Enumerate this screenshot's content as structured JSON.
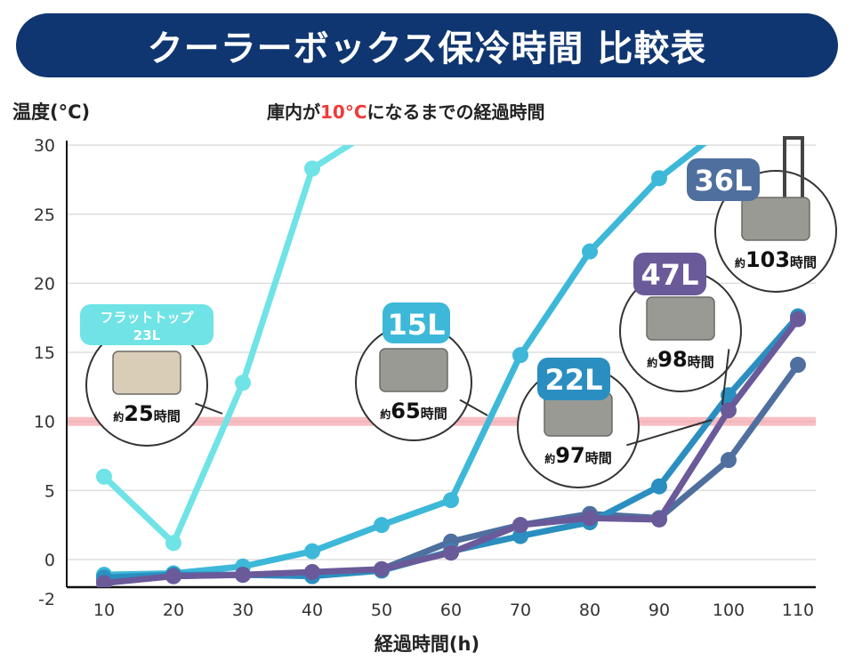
{
  "header": {
    "title": "クーラーボックス保冷時間 比較表"
  },
  "chart_data": {
    "type": "line",
    "title": "クーラーボックス保冷時間 比較表",
    "subtitle_pre": "庫内が",
    "subtitle_highlight": "10°C",
    "subtitle_post": "になるまでの経過時間",
    "xlabel": "経過時間(h)",
    "ylabel": "温度(°C)",
    "x": [
      10,
      20,
      30,
      40,
      50,
      60,
      70,
      80,
      90,
      100,
      110
    ],
    "xlim": [
      10,
      110
    ],
    "ylim": [
      -2,
      30
    ],
    "yticks": [
      30,
      25,
      20,
      15,
      10,
      5,
      0,
      -2
    ],
    "threshold": 10,
    "threshold_color": "#f5a3a8",
    "grid": true,
    "series": [
      {
        "name": "フラットトップ 23L",
        "color": "#6fe3e6",
        "values": [
          6.0,
          1.2,
          12.8,
          28.3,
          31.5,
          null,
          null,
          null,
          null,
          null,
          null
        ]
      },
      {
        "name": "15L",
        "color": "#3db8d8",
        "values": [
          -1.1,
          -1.0,
          -0.5,
          0.6,
          2.5,
          4.3,
          14.8,
          22.3,
          27.6,
          31.5,
          null
        ]
      },
      {
        "name": "22L",
        "color": "#2a8fc0",
        "values": [
          -1.3,
          -1.1,
          -1.1,
          -1.2,
          -0.8,
          0.6,
          1.7,
          2.7,
          5.3,
          11.9,
          17.6
        ]
      },
      {
        "name": "36L",
        "color": "#4f6f9f",
        "values": [
          -1.5,
          -1.2,
          -1.1,
          -1.1,
          -0.7,
          1.3,
          2.5,
          3.3,
          3.0,
          7.2,
          14.1
        ]
      },
      {
        "name": "47L",
        "color": "#6a5a9a",
        "values": [
          -1.7,
          -1.2,
          -1.1,
          -0.9,
          -0.7,
          0.5,
          2.5,
          3.0,
          2.9,
          10.8,
          17.4
        ]
      }
    ],
    "annotations": [
      {
        "label": "フラットトップ",
        "label2": "23L",
        "prefix": "約",
        "hours": "25",
        "suffix": "時間",
        "color": "#6fe3e6"
      },
      {
        "label": "15L",
        "prefix": "約",
        "hours": "65",
        "suffix": "時間",
        "color": "#3db8d8"
      },
      {
        "label": "22L",
        "prefix": "約",
        "hours": "97",
        "suffix": "時間",
        "color": "#2a8fc0"
      },
      {
        "label": "47L",
        "prefix": "約",
        "hours": "98",
        "suffix": "時間",
        "color": "#6a5a9a"
      },
      {
        "label": "36L",
        "prefix": "約",
        "hours": "103",
        "suffix": "時間",
        "color": "#4f6f9f"
      }
    ]
  }
}
